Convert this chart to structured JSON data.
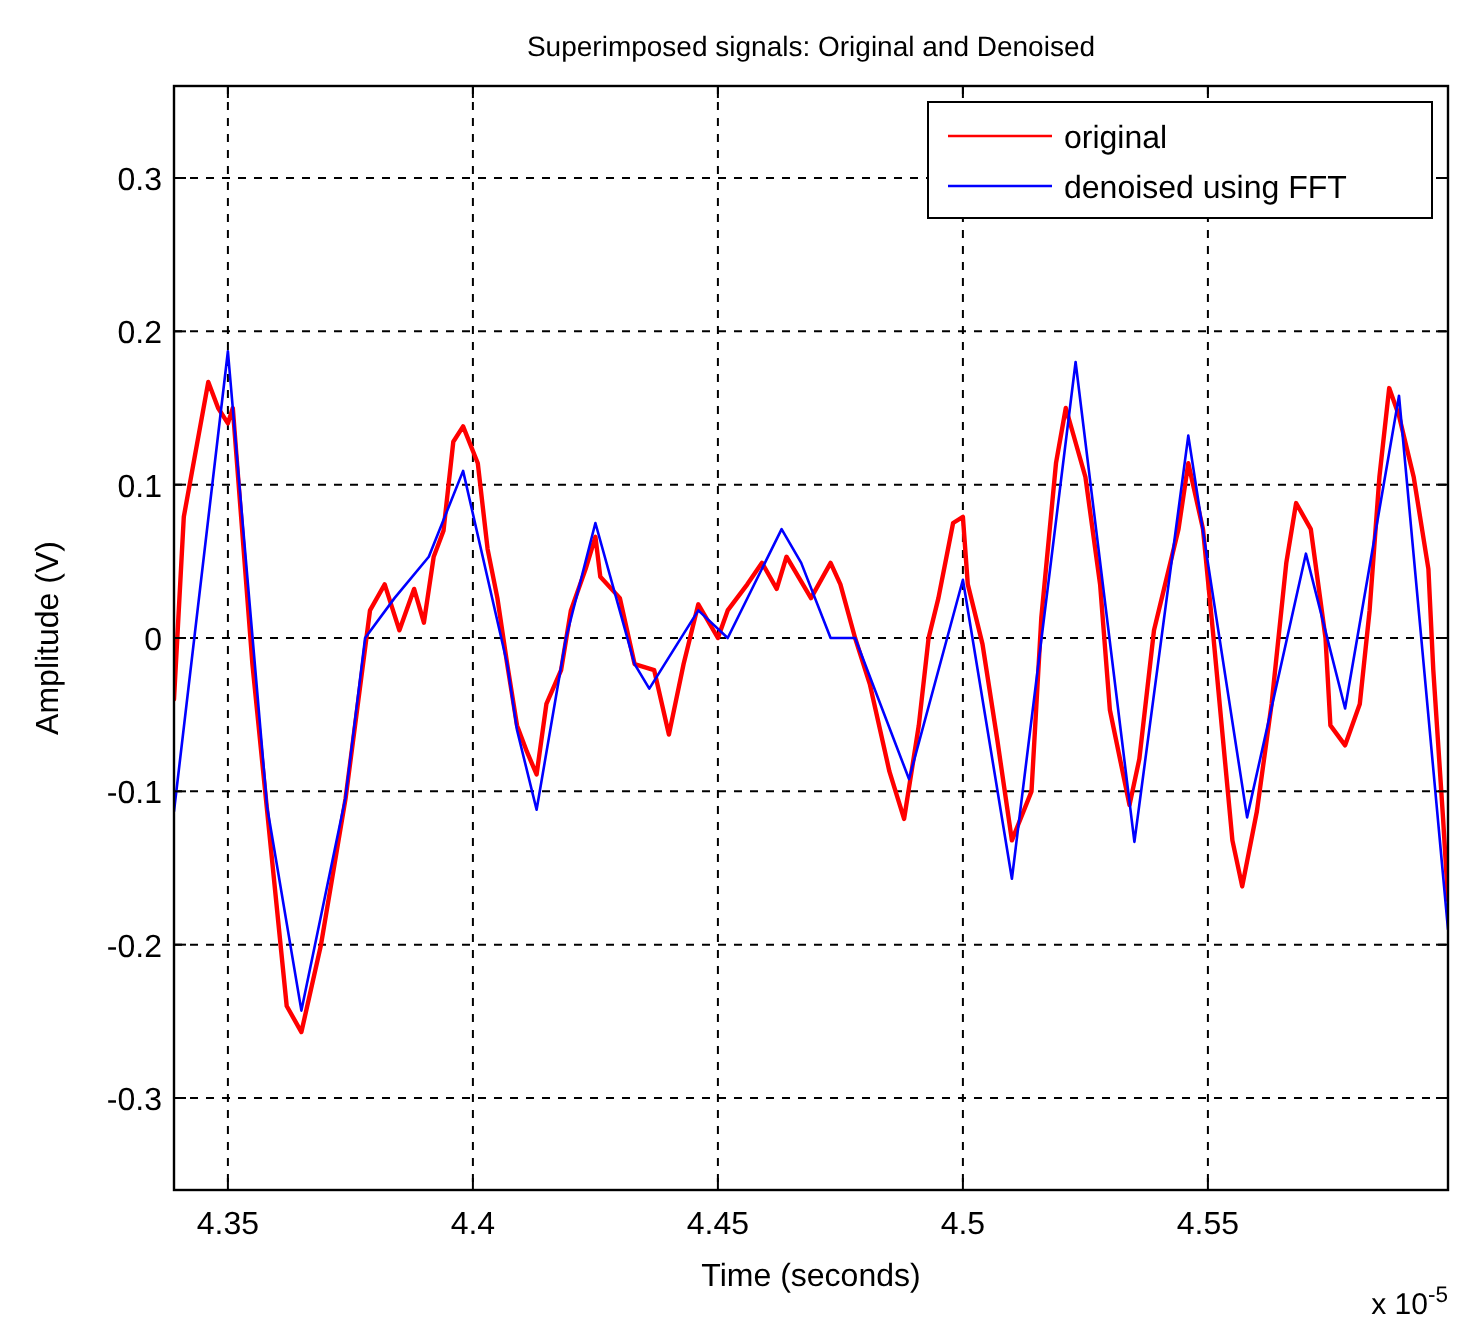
{
  "chart_data": {
    "type": "line",
    "title": "Superimposed signals: Original and Denoised",
    "xlabel": "Time (seconds)",
    "ylabel": "Amplitude (V)",
    "annotations": [
      "x 10$^{-5}$"
    ],
    "xlim": [
      4.339,
      4.599
    ],
    "ylim": [
      -0.36,
      0.36
    ],
    "xticks": [
      4.35,
      4.4,
      4.45,
      4.5,
      4.55
    ],
    "yticks": [
      -0.3,
      -0.2,
      -0.1,
      0,
      0.1,
      0.2,
      0.3
    ],
    "grid": true,
    "legend": "top right",
    "line_style": "solid",
    "marker": "none",
    "series": [
      {
        "name": "original",
        "color": "#ff0000",
        "x": [
          4.339,
          4.341,
          4.346,
          4.348,
          4.35,
          4.351,
          4.355,
          4.362,
          4.365,
          4.369,
          4.374,
          4.379,
          4.382,
          4.385,
          4.388,
          4.39,
          4.392,
          4.394,
          4.396,
          4.398,
          4.401,
          4.403,
          4.405,
          4.407,
          4.409,
          4.411,
          4.413,
          4.415,
          4.418,
          4.42,
          4.423,
          4.425,
          4.426,
          4.43,
          4.433,
          4.437,
          4.44,
          4.443,
          4.446,
          4.45,
          4.452,
          4.456,
          4.459,
          4.462,
          4.464,
          4.469,
          4.473,
          4.475,
          4.478,
          4.481,
          4.485,
          4.488,
          4.491,
          4.493,
          4.495,
          4.498,
          4.5,
          4.501,
          4.504,
          4.507,
          4.51,
          4.514,
          4.516,
          4.519,
          4.521,
          4.525,
          4.528,
          4.53,
          4.534,
          4.536,
          4.539,
          4.544,
          4.546,
          4.549,
          4.551,
          4.555,
          4.557,
          4.56,
          4.563,
          4.566,
          4.568,
          4.571,
          4.574,
          4.575,
          4.578,
          4.581,
          4.583,
          4.585,
          4.587,
          4.589,
          4.592,
          4.595,
          4.596,
          4.598,
          4.599
        ],
        "values": [
          -0.04,
          0.079,
          0.167,
          0.15,
          0.14,
          0.15,
          -0.017,
          -0.24,
          -0.257,
          -0.2,
          -0.105,
          0.018,
          0.035,
          0.005,
          0.032,
          0.01,
          0.053,
          0.07,
          0.128,
          0.138,
          0.114,
          0.058,
          0.026,
          -0.017,
          -0.057,
          -0.074,
          -0.089,
          -0.043,
          -0.021,
          0.018,
          0.045,
          0.066,
          0.04,
          0.026,
          -0.017,
          -0.021,
          -0.063,
          -0.017,
          0.022,
          0,
          0.018,
          0.035,
          0.049,
          0.032,
          0.053,
          0.026,
          0.049,
          0.035,
          0,
          -0.03,
          -0.087,
          -0.118,
          -0.057,
          0,
          0.026,
          0.075,
          0.079,
          0.035,
          -0.004,
          -0.066,
          -0.132,
          -0.1,
          0.013,
          0.114,
          0.15,
          0.105,
          0.035,
          -0.047,
          -0.109,
          -0.079,
          0.005,
          0.071,
          0.114,
          0.071,
          0.005,
          -0.132,
          -0.162,
          -0.113,
          -0.043,
          0.049,
          0.088,
          0.071,
          0,
          -0.057,
          -0.07,
          -0.043,
          0.018,
          0.105,
          0.163,
          0.145,
          0.105,
          0.045,
          -0.021,
          -0.118,
          -0.171
        ]
      },
      {
        "name": "denoised using FFT",
        "color": "#0000ff",
        "x": [
          4.339,
          4.35,
          4.358,
          4.365,
          4.374,
          4.378,
          4.384,
          4.391,
          4.398,
          4.407,
          4.409,
          4.413,
          4.419,
          4.425,
          4.433,
          4.436,
          4.446,
          4.452,
          4.463,
          4.467,
          4.473,
          4.478,
          4.489,
          4.5,
          4.51,
          4.523,
          4.535,
          4.546,
          4.558,
          4.57,
          4.578,
          4.589,
          4.599
        ],
        "values": [
          -0.113,
          0.187,
          -0.11,
          -0.243,
          -0.104,
          0,
          0.026,
          0.053,
          0.109,
          -0.017,
          -0.06,
          -0.112,
          0,
          0.075,
          -0.017,
          -0.033,
          0.018,
          0,
          0.071,
          0.049,
          0,
          0,
          -0.092,
          0.038,
          -0.157,
          0.18,
          -0.133,
          0.132,
          -0.117,
          0.055,
          -0.046,
          0.158,
          -0.19
        ]
      }
    ]
  }
}
